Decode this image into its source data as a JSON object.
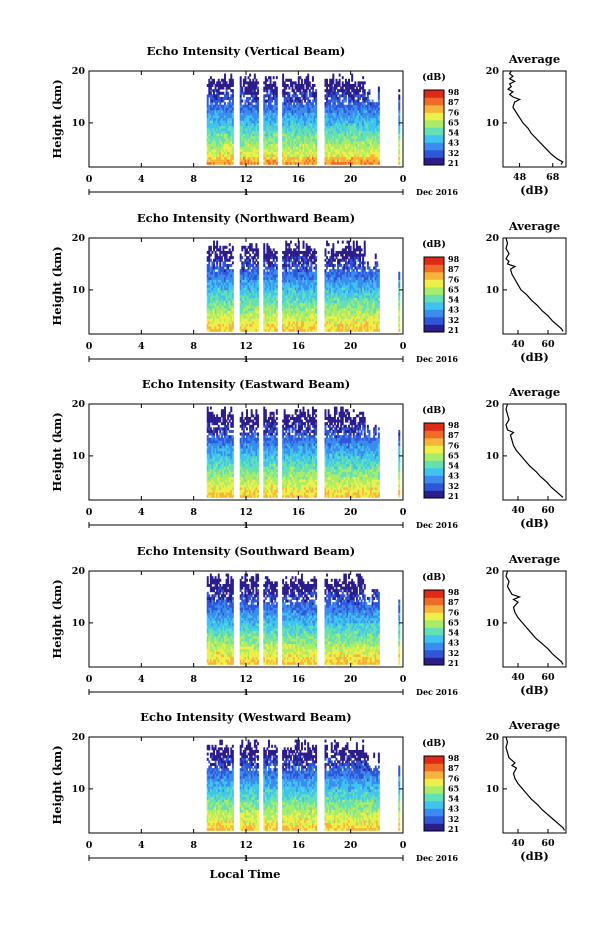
{
  "figure": {
    "date_label": "Dec 2016",
    "xlabel": "Local Time",
    "colorbar_title": "(dB)",
    "colorbar_ticks": [
      "98",
      "87",
      "76",
      "65",
      "54",
      "43",
      "32",
      "21"
    ],
    "colors": {
      "scale": [
        "#2b1d8c",
        "#2f56d8",
        "#3c8cf0",
        "#3fc4ef",
        "#64e0b4",
        "#a8ec6a",
        "#eef04a",
        "#f8b33a",
        "#f06a2a",
        "#e02a18"
      ]
    }
  },
  "chart_data": [
    {
      "type": "heatmap",
      "title": "Echo Intensity (Vertical Beam)",
      "ylabel": "Height (km)",
      "x_ticks": [
        "0",
        "4",
        "8",
        "12",
        "16",
        "20",
        "0"
      ],
      "y_ticks": [
        "20",
        "10"
      ],
      "xlim": [
        0,
        24
      ],
      "ylim": [
        1.5,
        20
      ],
      "clim": [
        21,
        98
      ],
      "data_gaps_hours": [
        [
          11.0,
          11.55
        ],
        [
          12.95,
          13.3
        ],
        [
          14.4,
          14.75
        ],
        [
          17.4,
          18.0
        ],
        [
          22.2,
          23.6
        ],
        [
          23.75,
          23.95
        ]
      ],
      "profile": {
        "title": "Average",
        "xlabel": "(dB)",
        "x_ticks": [
          "48",
          "68"
        ],
        "y_ticks": [
          "20",
          "10"
        ],
        "xlim": [
          38,
          76
        ],
        "ylim": [
          1.5,
          20
        ],
        "points": [
          {
            "height_km": 2,
            "db": 73
          },
          {
            "height_km": 2.5,
            "db": 74
          },
          {
            "height_km": 3,
            "db": 71
          },
          {
            "height_km": 3.5,
            "db": 69
          },
          {
            "height_km": 4,
            "db": 67
          },
          {
            "height_km": 5,
            "db": 64
          },
          {
            "height_km": 6,
            "db": 61
          },
          {
            "height_km": 7,
            "db": 58
          },
          {
            "height_km": 8,
            "db": 55
          },
          {
            "height_km": 9,
            "db": 53
          },
          {
            "height_km": 10,
            "db": 50
          },
          {
            "height_km": 11,
            "db": 48
          },
          {
            "height_km": 12,
            "db": 46
          },
          {
            "height_km": 13,
            "db": 44
          },
          {
            "height_km": 14,
            "db": 45
          },
          {
            "height_km": 14.5,
            "db": 48
          },
          {
            "height_km": 15,
            "db": 44
          },
          {
            "height_km": 15.5,
            "db": 42
          },
          {
            "height_km": 16,
            "db": 44
          },
          {
            "height_km": 16.5,
            "db": 41
          },
          {
            "height_km": 17,
            "db": 43
          },
          {
            "height_km": 17.5,
            "db": 42
          },
          {
            "height_km": 18,
            "db": 45
          },
          {
            "height_km": 18.5,
            "db": 42
          },
          {
            "height_km": 19,
            "db": 44
          },
          {
            "height_km": 19.5,
            "db": 42
          },
          {
            "height_km": 20,
            "db": 43
          }
        ]
      }
    },
    {
      "type": "heatmap",
      "title": "Echo Intensity (Northward Beam)",
      "ylabel": "Height (km)",
      "x_ticks": [
        "0",
        "4",
        "8",
        "12",
        "16",
        "20",
        "0"
      ],
      "y_ticks": [
        "20",
        "10"
      ],
      "xlim": [
        0,
        24
      ],
      "ylim": [
        1.5,
        20
      ],
      "clim": [
        21,
        98
      ],
      "data_gaps_hours": [
        [
          11.0,
          11.55
        ],
        [
          12.95,
          13.3
        ],
        [
          14.4,
          14.75
        ],
        [
          17.4,
          18.0
        ],
        [
          22.2,
          23.6
        ],
        [
          23.75,
          23.95
        ]
      ],
      "profile": {
        "title": "Average",
        "xlabel": "(dB)",
        "x_ticks": [
          "40",
          "60"
        ],
        "y_ticks": [
          "20",
          "10"
        ],
        "xlim": [
          30,
          72
        ],
        "ylim": [
          1.5,
          20
        ],
        "points": [
          {
            "height_km": 2,
            "db": 70
          },
          {
            "height_km": 2.5,
            "db": 69
          },
          {
            "height_km": 3,
            "db": 67
          },
          {
            "height_km": 3.5,
            "db": 65
          },
          {
            "height_km": 4,
            "db": 63
          },
          {
            "height_km": 5,
            "db": 60
          },
          {
            "height_km": 6,
            "db": 56
          },
          {
            "height_km": 7,
            "db": 53
          },
          {
            "height_km": 8,
            "db": 49
          },
          {
            "height_km": 9,
            "db": 46
          },
          {
            "height_km": 10,
            "db": 42
          },
          {
            "height_km": 11,
            "db": 40
          },
          {
            "height_km": 12,
            "db": 38
          },
          {
            "height_km": 13,
            "db": 36
          },
          {
            "height_km": 14,
            "db": 35
          },
          {
            "height_km": 14.5,
            "db": 38
          },
          {
            "height_km": 15,
            "db": 33
          },
          {
            "height_km": 15.5,
            "db": 34
          },
          {
            "height_km": 16,
            "db": 32
          },
          {
            "height_km": 17,
            "db": 34
          },
          {
            "height_km": 18,
            "db": 32
          },
          {
            "height_km": 19,
            "db": 33
          },
          {
            "height_km": 20,
            "db": 32
          }
        ]
      }
    },
    {
      "type": "heatmap",
      "title": "Echo Intensity (Eastward Beam)",
      "ylabel": "Height (km)",
      "x_ticks": [
        "0",
        "4",
        "8",
        "12",
        "16",
        "20",
        "0"
      ],
      "y_ticks": [
        "20",
        "10"
      ],
      "xlim": [
        0,
        24
      ],
      "ylim": [
        1.5,
        20
      ],
      "clim": [
        21,
        98
      ],
      "data_gaps_hours": [
        [
          11.0,
          11.55
        ],
        [
          12.95,
          13.3
        ],
        [
          14.4,
          14.75
        ],
        [
          17.4,
          18.0
        ],
        [
          22.2,
          23.6
        ],
        [
          23.75,
          23.95
        ]
      ],
      "profile": {
        "title": "Average",
        "xlabel": "(dB)",
        "x_ticks": [
          "40",
          "60"
        ],
        "y_ticks": [
          "20",
          "10"
        ],
        "xlim": [
          30,
          72
        ],
        "ylim": [
          1.5,
          20
        ],
        "points": [
          {
            "height_km": 2,
            "db": 70
          },
          {
            "height_km": 2.5,
            "db": 68
          },
          {
            "height_km": 3,
            "db": 66
          },
          {
            "height_km": 3.5,
            "db": 64
          },
          {
            "height_km": 4,
            "db": 62
          },
          {
            "height_km": 5,
            "db": 59
          },
          {
            "height_km": 6,
            "db": 55
          },
          {
            "height_km": 7,
            "db": 52
          },
          {
            "height_km": 8,
            "db": 48
          },
          {
            "height_km": 9,
            "db": 45
          },
          {
            "height_km": 10,
            "db": 42
          },
          {
            "height_km": 11,
            "db": 39
          },
          {
            "height_km": 12,
            "db": 37
          },
          {
            "height_km": 13,
            "db": 36
          },
          {
            "height_km": 14,
            "db": 35
          },
          {
            "height_km": 14.5,
            "db": 37
          },
          {
            "height_km": 15,
            "db": 33
          },
          {
            "height_km": 16,
            "db": 32
          },
          {
            "height_km": 17,
            "db": 34
          },
          {
            "height_km": 18,
            "db": 33
          },
          {
            "height_km": 19,
            "db": 32
          },
          {
            "height_km": 20,
            "db": 33
          }
        ]
      }
    },
    {
      "type": "heatmap",
      "title": "Echo Intensity (Southward Beam)",
      "ylabel": "Height (km)",
      "x_ticks": [
        "0",
        "4",
        "8",
        "12",
        "16",
        "20",
        "0"
      ],
      "y_ticks": [
        "20",
        "10"
      ],
      "xlim": [
        0,
        24
      ],
      "ylim": [
        1.5,
        20
      ],
      "clim": [
        21,
        98
      ],
      "data_gaps_hours": [
        [
          11.0,
          11.55
        ],
        [
          12.95,
          13.3
        ],
        [
          14.4,
          14.75
        ],
        [
          17.4,
          18.0
        ],
        [
          22.2,
          23.6
        ],
        [
          23.75,
          23.95
        ]
      ],
      "profile": {
        "title": "Average",
        "xlabel": "(dB)",
        "x_ticks": [
          "40",
          "60"
        ],
        "y_ticks": [
          "20",
          "10"
        ],
        "xlim": [
          30,
          72
        ],
        "ylim": [
          1.5,
          20
        ],
        "points": [
          {
            "height_km": 2,
            "db": 70
          },
          {
            "height_km": 2.5,
            "db": 69
          },
          {
            "height_km": 3,
            "db": 67
          },
          {
            "height_km": 3.5,
            "db": 65
          },
          {
            "height_km": 4,
            "db": 63
          },
          {
            "height_km": 5,
            "db": 60
          },
          {
            "height_km": 6,
            "db": 56
          },
          {
            "height_km": 7,
            "db": 52
          },
          {
            "height_km": 8,
            "db": 49
          },
          {
            "height_km": 9,
            "db": 46
          },
          {
            "height_km": 10,
            "db": 43
          },
          {
            "height_km": 11,
            "db": 40
          },
          {
            "height_km": 12,
            "db": 38
          },
          {
            "height_km": 13,
            "db": 37
          },
          {
            "height_km": 14,
            "db": 40
          },
          {
            "height_km": 14.5,
            "db": 37
          },
          {
            "height_km": 15,
            "db": 41
          },
          {
            "height_km": 15.5,
            "db": 36
          },
          {
            "height_km": 16,
            "db": 35
          },
          {
            "height_km": 17,
            "db": 33
          },
          {
            "height_km": 18,
            "db": 34
          },
          {
            "height_km": 19,
            "db": 32
          },
          {
            "height_km": 20,
            "db": 33
          }
        ]
      }
    },
    {
      "type": "heatmap",
      "title": "Echo Intensity (Westward Beam)",
      "ylabel": "Height (km)",
      "x_ticks": [
        "0",
        "4",
        "8",
        "12",
        "16",
        "20",
        "0"
      ],
      "y_ticks": [
        "20",
        "10"
      ],
      "xlim": [
        0,
        24
      ],
      "ylim": [
        1.5,
        20
      ],
      "clim": [
        21,
        98
      ],
      "data_gaps_hours": [
        [
          11.0,
          11.55
        ],
        [
          12.95,
          13.3
        ],
        [
          14.4,
          14.75
        ],
        [
          17.4,
          18.0
        ],
        [
          22.2,
          23.6
        ],
        [
          23.75,
          23.95
        ]
      ],
      "profile": {
        "title": "Average",
        "xlabel": "(dB)",
        "x_ticks": [
          "40",
          "60"
        ],
        "y_ticks": [
          "20",
          "10"
        ],
        "xlim": [
          30,
          72
        ],
        "ylim": [
          1.5,
          20
        ],
        "points": [
          {
            "height_km": 2,
            "db": 71
          },
          {
            "height_km": 2.5,
            "db": 70
          },
          {
            "height_km": 3,
            "db": 68
          },
          {
            "height_km": 3.5,
            "db": 66
          },
          {
            "height_km": 4,
            "db": 64
          },
          {
            "height_km": 5,
            "db": 60
          },
          {
            "height_km": 6,
            "db": 56
          },
          {
            "height_km": 7,
            "db": 53
          },
          {
            "height_km": 8,
            "db": 49
          },
          {
            "height_km": 9,
            "db": 46
          },
          {
            "height_km": 10,
            "db": 43
          },
          {
            "height_km": 11,
            "db": 40
          },
          {
            "height_km": 12,
            "db": 38
          },
          {
            "height_km": 13,
            "db": 37
          },
          {
            "height_km": 14,
            "db": 39
          },
          {
            "height_km": 14.5,
            "db": 36
          },
          {
            "height_km": 15,
            "db": 38
          },
          {
            "height_km": 16,
            "db": 34
          },
          {
            "height_km": 17,
            "db": 33
          },
          {
            "height_km": 18,
            "db": 32
          },
          {
            "height_km": 19,
            "db": 33
          },
          {
            "height_km": 20,
            "db": 32
          }
        ]
      }
    }
  ]
}
